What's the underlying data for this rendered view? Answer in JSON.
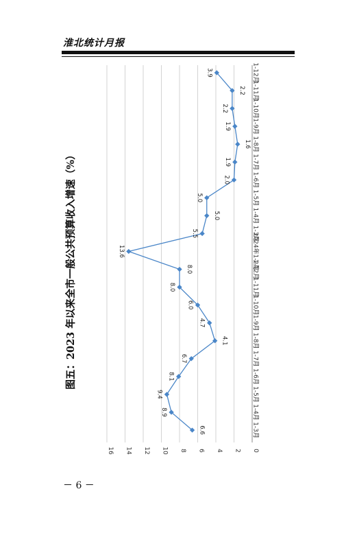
{
  "header": {
    "title": "淮北统计月报"
  },
  "page": {
    "number": "－ 6 －"
  },
  "chart_data": {
    "type": "line",
    "title": "图五：2023 年以来全市一般公共预算收入增速（%）",
    "xlabel": "",
    "ylabel": "",
    "categories": [
      "1-3月",
      "1-4月",
      "1-5月",
      "1-6月",
      "1-7月",
      "1-8月",
      "1-9月",
      "1-10月",
      "1-11月",
      "1-12月",
      "2024年1-2月",
      "1-3月",
      "1-4月",
      "1-5月",
      "1-6月",
      "1-7月",
      "1-8月",
      "1-9月",
      "1-10月",
      "1-11月",
      "1-12月"
    ],
    "series": [
      {
        "values": [
          6.6,
          8.9,
          9.4,
          8.1,
          6.7,
          4.1,
          4.7,
          6.0,
          8.0,
          8.0,
          13.6,
          5.5,
          5.0,
          5.0,
          2.0,
          1.9,
          1.6,
          1.9,
          2.2,
          2.2,
          3.9
        ]
      }
    ],
    "data_labels": [
      "6.6",
      "8.9",
      "9.4",
      "8.1",
      "6.7",
      "4.1",
      "4.7",
      "6.0",
      "8.0",
      "8.0",
      "13.6",
      "5.5",
      "5.0",
      "5.0",
      "2.0",
      "1.9",
      "1.6",
      "1.9",
      "2.2",
      "2.2",
      "3.9"
    ],
    "y_ticks": [
      "0",
      "2",
      "4",
      "6",
      "8",
      "10",
      "12",
      "14",
      "16"
    ],
    "ylim": [
      0,
      16
    ],
    "grid": true,
    "legend": "none",
    "orientation": "rotated-90-clockwise",
    "colors": {
      "line": "#4a86c8",
      "grid": "#c8c8c8",
      "axis": "#888888"
    }
  }
}
